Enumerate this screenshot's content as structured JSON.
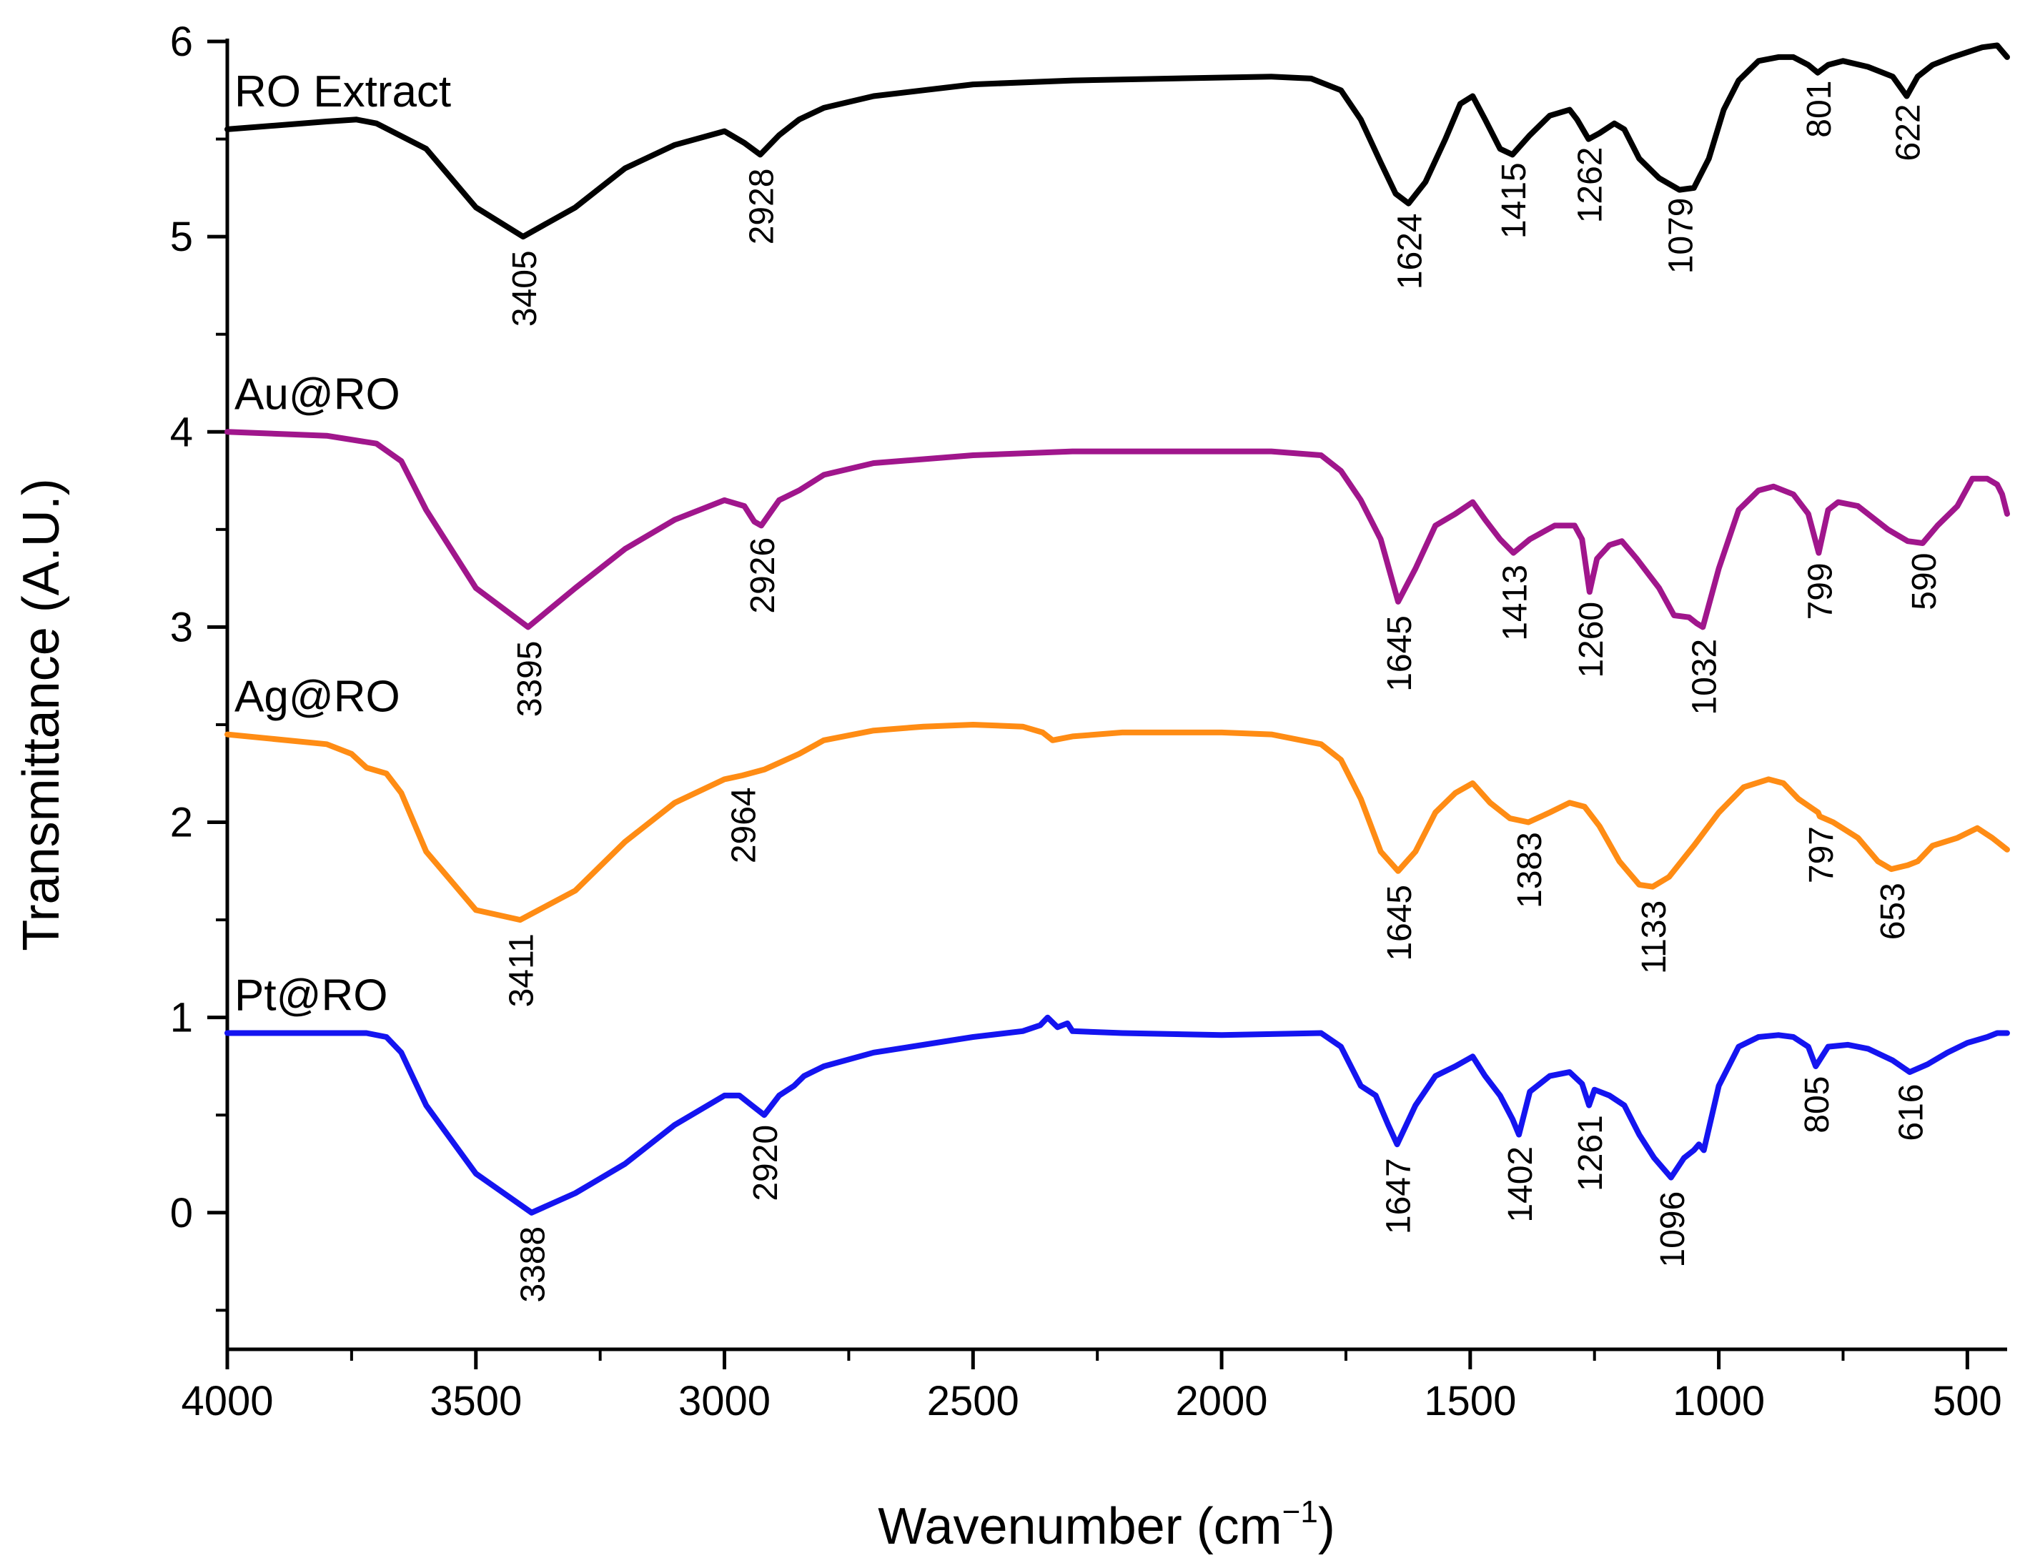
{
  "chart_data": {
    "type": "line",
    "title": "",
    "xlabel": "Wavenumber (cm",
    "xlabel_sup": "−1",
    "xlabel_close": ")",
    "ylabel": "Transmittance (A.U.)",
    "xlim": [
      4000,
      420
    ],
    "ylim": [
      -0.7,
      6
    ],
    "x_ticks": [
      4000,
      3500,
      3000,
      2500,
      2000,
      1500,
      1000,
      500
    ],
    "x_tick_labels": [
      "4000",
      "3500",
      "3000",
      "2500",
      "2000",
      "1500",
      "1000",
      "500"
    ],
    "y_ticks": [
      0,
      1,
      2,
      3,
      4,
      5,
      6
    ],
    "y_tick_labels": [
      "0",
      "1",
      "2",
      "3",
      "4",
      "5",
      "6"
    ],
    "grid": false,
    "series": [
      {
        "name": "RO Extract",
        "color": "#000000",
        "x": [
          4000,
          3800,
          3740,
          3700,
          3600,
          3500,
          3405,
          3300,
          3200,
          3100,
          3000,
          2960,
          2928,
          2890,
          2850,
          2800,
          2700,
          2500,
          2300,
          2100,
          1900,
          1820,
          1760,
          1720,
          1680,
          1650,
          1624,
          1590,
          1550,
          1520,
          1495,
          1470,
          1440,
          1415,
          1380,
          1340,
          1300,
          1285,
          1262,
          1240,
          1210,
          1190,
          1160,
          1120,
          1079,
          1050,
          1020,
          990,
          960,
          920,
          880,
          850,
          820,
          801,
          780,
          750,
          700,
          650,
          622,
          600,
          570,
          530,
          470,
          440,
          430,
          420
        ],
        "y": [
          5.55,
          5.59,
          5.6,
          5.58,
          5.45,
          5.15,
          5.0,
          5.15,
          5.35,
          5.47,
          5.54,
          5.48,
          5.42,
          5.52,
          5.6,
          5.66,
          5.72,
          5.78,
          5.8,
          5.81,
          5.82,
          5.81,
          5.75,
          5.6,
          5.38,
          5.22,
          5.17,
          5.28,
          5.5,
          5.68,
          5.72,
          5.6,
          5.45,
          5.42,
          5.52,
          5.62,
          5.65,
          5.6,
          5.5,
          5.53,
          5.58,
          5.55,
          5.4,
          5.3,
          5.24,
          5.25,
          5.4,
          5.65,
          5.8,
          5.9,
          5.92,
          5.92,
          5.88,
          5.84,
          5.88,
          5.9,
          5.87,
          5.82,
          5.72,
          5.82,
          5.88,
          5.92,
          5.97,
          5.98,
          5.95,
          5.92
        ]
      },
      {
        "name": "Au@RO",
        "color": "#a0168c",
        "x": [
          4000,
          3800,
          3700,
          3650,
          3600,
          3500,
          3395,
          3300,
          3200,
          3100,
          3000,
          2960,
          2940,
          2926,
          2890,
          2850,
          2800,
          2700,
          2500,
          2300,
          2100,
          1900,
          1800,
          1760,
          1720,
          1680,
          1645,
          1610,
          1570,
          1530,
          1495,
          1470,
          1440,
          1413,
          1380,
          1330,
          1290,
          1275,
          1260,
          1245,
          1220,
          1195,
          1165,
          1120,
          1090,
          1060,
          1045,
          1032,
          1000,
          960,
          920,
          890,
          850,
          820,
          799,
          780,
          760,
          720,
          660,
          620,
          590,
          560,
          520,
          490,
          460,
          440,
          430,
          420
        ],
        "y": [
          4.0,
          3.98,
          3.94,
          3.85,
          3.6,
          3.2,
          3.0,
          3.2,
          3.4,
          3.55,
          3.65,
          3.62,
          3.54,
          3.52,
          3.65,
          3.7,
          3.78,
          3.84,
          3.88,
          3.9,
          3.9,
          3.9,
          3.88,
          3.8,
          3.65,
          3.45,
          3.13,
          3.3,
          3.52,
          3.58,
          3.64,
          3.55,
          3.45,
          3.38,
          3.45,
          3.52,
          3.52,
          3.45,
          3.18,
          3.35,
          3.42,
          3.44,
          3.35,
          3.2,
          3.06,
          3.05,
          3.02,
          3.0,
          3.3,
          3.6,
          3.7,
          3.72,
          3.68,
          3.58,
          3.38,
          3.6,
          3.64,
          3.62,
          3.5,
          3.44,
          3.43,
          3.52,
          3.62,
          3.76,
          3.76,
          3.73,
          3.68,
          3.58
        ]
      },
      {
        "name": "Ag@RO",
        "color": "#ff8c14",
        "x": [
          4000,
          3800,
          3750,
          3720,
          3680,
          3650,
          3600,
          3500,
          3411,
          3300,
          3200,
          3100,
          3000,
          2964,
          2920,
          2850,
          2800,
          2700,
          2600,
          2500,
          2400,
          2360,
          2340,
          2300,
          2200,
          2000,
          1900,
          1800,
          1760,
          1720,
          1680,
          1645,
          1610,
          1570,
          1530,
          1495,
          1460,
          1420,
          1383,
          1340,
          1300,
          1270,
          1240,
          1200,
          1160,
          1133,
          1100,
          1050,
          1000,
          950,
          900,
          870,
          840,
          800,
          797,
          770,
          720,
          680,
          653,
          620,
          600,
          570,
          520,
          480,
          450,
          430,
          420
        ],
        "y": [
          2.45,
          2.4,
          2.35,
          2.28,
          2.25,
          2.15,
          1.85,
          1.55,
          1.5,
          1.65,
          1.9,
          2.1,
          2.22,
          2.24,
          2.27,
          2.35,
          2.42,
          2.47,
          2.49,
          2.5,
          2.49,
          2.46,
          2.42,
          2.44,
          2.46,
          2.46,
          2.45,
          2.4,
          2.32,
          2.12,
          1.85,
          1.75,
          1.85,
          2.05,
          2.15,
          2.2,
          2.1,
          2.02,
          2.0,
          2.05,
          2.1,
          2.08,
          1.98,
          1.8,
          1.68,
          1.67,
          1.72,
          1.88,
          2.05,
          2.18,
          2.22,
          2.2,
          2.12,
          2.05,
          2.03,
          2.0,
          1.92,
          1.8,
          1.76,
          1.78,
          1.8,
          1.88,
          1.92,
          1.97,
          1.92,
          1.88,
          1.86
        ]
      },
      {
        "name": "Pt@RO",
        "color": "#1414f0",
        "x": [
          4000,
          3800,
          3720,
          3680,
          3650,
          3600,
          3500,
          3388,
          3300,
          3200,
          3100,
          3000,
          2970,
          2945,
          2920,
          2890,
          2860,
          2840,
          2800,
          2700,
          2500,
          2400,
          2365,
          2350,
          2330,
          2310,
          2300,
          2200,
          2000,
          1800,
          1760,
          1720,
          1690,
          1665,
          1647,
          1610,
          1570,
          1530,
          1495,
          1470,
          1440,
          1415,
          1402,
          1380,
          1340,
          1300,
          1275,
          1261,
          1250,
          1220,
          1190,
          1160,
          1130,
          1096,
          1070,
          1050,
          1040,
          1030,
          1000,
          960,
          920,
          880,
          850,
          820,
          805,
          780,
          740,
          700,
          650,
          616,
          580,
          540,
          500,
          460,
          440,
          430,
          420
        ],
        "y": [
          0.92,
          0.92,
          0.92,
          0.9,
          0.82,
          0.55,
          0.2,
          0.0,
          0.1,
          0.25,
          0.45,
          0.6,
          0.6,
          0.55,
          0.5,
          0.6,
          0.65,
          0.7,
          0.75,
          0.82,
          0.9,
          0.93,
          0.96,
          1.0,
          0.95,
          0.97,
          0.93,
          0.92,
          0.91,
          0.92,
          0.85,
          0.65,
          0.6,
          0.45,
          0.35,
          0.55,
          0.7,
          0.75,
          0.8,
          0.7,
          0.6,
          0.48,
          0.4,
          0.62,
          0.7,
          0.72,
          0.66,
          0.55,
          0.63,
          0.6,
          0.55,
          0.4,
          0.28,
          0.18,
          0.28,
          0.32,
          0.35,
          0.32,
          0.65,
          0.85,
          0.9,
          0.91,
          0.9,
          0.85,
          0.75,
          0.85,
          0.86,
          0.84,
          0.78,
          0.72,
          0.76,
          0.82,
          0.87,
          0.9,
          0.92,
          0.92,
          0.92
        ]
      }
    ],
    "annotations": [
      {
        "series": "RO Extract",
        "text": "3405",
        "x": 3405,
        "y": 4.93
      },
      {
        "series": "RO Extract",
        "text": "2928",
        "x": 2928,
        "y": 5.35
      },
      {
        "series": "RO Extract",
        "text": "1624",
        "x": 1624,
        "y": 5.12
      },
      {
        "series": "RO Extract",
        "text": "1415",
        "x": 1415,
        "y": 5.38
      },
      {
        "series": "RO Extract",
        "text": "1262",
        "x": 1262,
        "y": 5.46
      },
      {
        "series": "RO Extract",
        "text": "1079",
        "x": 1079,
        "y": 5.2
      },
      {
        "series": "RO Extract",
        "text": "801",
        "x": 801,
        "y": 5.8
      },
      {
        "series": "RO Extract",
        "text": "622",
        "x": 622,
        "y": 5.68
      },
      {
        "series": "Au@RO",
        "text": "3395",
        "x": 3395,
        "y": 2.93
      },
      {
        "series": "Au@RO",
        "text": "2926",
        "x": 2926,
        "y": 3.46
      },
      {
        "series": "Au@RO",
        "text": "1645",
        "x": 1645,
        "y": 3.06
      },
      {
        "series": "Au@RO",
        "text": "1413",
        "x": 1413,
        "y": 3.32
      },
      {
        "series": "Au@RO",
        "text": "1260",
        "x": 1260,
        "y": 3.13
      },
      {
        "series": "Au@RO",
        "text": "1032",
        "x": 1032,
        "y": 2.94
      },
      {
        "series": "Au@RO",
        "text": "799",
        "x": 799,
        "y": 3.33
      },
      {
        "series": "Au@RO",
        "text": "590",
        "x": 590,
        "y": 3.38
      },
      {
        "series": "Ag@RO",
        "text": "3411",
        "x": 3411,
        "y": 1.43
      },
      {
        "series": "Ag@RO",
        "text": "2964",
        "x": 2964,
        "y": 2.18
      },
      {
        "series": "Ag@RO",
        "text": "1645",
        "x": 1645,
        "y": 1.68
      },
      {
        "series": "Ag@RO",
        "text": "1383",
        "x": 1383,
        "y": 1.95
      },
      {
        "series": "Ag@RO",
        "text": "1133",
        "x": 1133,
        "y": 1.6
      },
      {
        "series": "Ag@RO",
        "text": "797",
        "x": 797,
        "y": 1.98
      },
      {
        "series": "Ag@RO",
        "text": "653",
        "x": 653,
        "y": 1.69
      },
      {
        "series": "Pt@RO",
        "text": "3388",
        "x": 3388,
        "y": -0.07
      },
      {
        "series": "Pt@RO",
        "text": "2920",
        "x": 2920,
        "y": 0.45
      },
      {
        "series": "Pt@RO",
        "text": "1647",
        "x": 1647,
        "y": 0.28
      },
      {
        "series": "Pt@RO",
        "text": "1402",
        "x": 1402,
        "y": 0.34
      },
      {
        "series": "Pt@RO",
        "text": "1261",
        "x": 1261,
        "y": 0.5
      },
      {
        "series": "Pt@RO",
        "text": "1096",
        "x": 1096,
        "y": 0.11
      },
      {
        "series": "Pt@RO",
        "text": "805",
        "x": 805,
        "y": 0.7
      },
      {
        "series": "Pt@RO",
        "text": "616",
        "x": 616,
        "y": 0.66
      }
    ]
  }
}
